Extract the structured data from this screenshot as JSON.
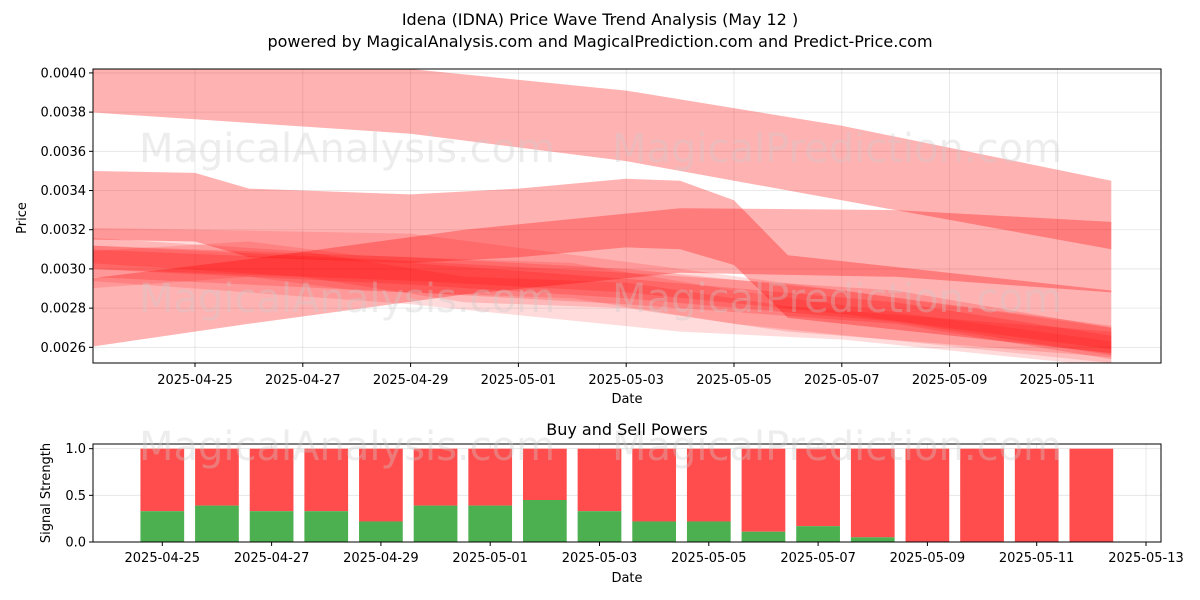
{
  "title": "Idena (IDNA) Price Wave Trend Analysis (May 12 )",
  "subtitle": "powered by MagicalAnalysis.com and MagicalPrediction.com and Predict-Price.com",
  "watermarks": [
    "MagicalAnalysis.com",
    "MagicalPrediction.com"
  ],
  "colors": {
    "band": "#ff0000",
    "buy": "#4caf50",
    "sell": "#ff4d4d"
  },
  "chart_data": [
    {
      "type": "area",
      "xlabel": "Date",
      "ylabel": "Price",
      "ylim": [
        0.00252,
        0.00402
      ],
      "x_ticks": [
        "2025-04-25",
        "2025-04-27",
        "2025-04-29",
        "2025-05-01",
        "2025-05-03",
        "2025-05-05",
        "2025-05-07",
        "2025-05-09",
        "2025-05-11"
      ],
      "y_ticks": [
        "0.0026",
        "0.0028",
        "0.0030",
        "0.0032",
        "0.0034",
        "0.0036",
        "0.0038",
        "0.0040"
      ],
      "grid": true,
      "series": [
        {
          "x": [
            "2025-04-23",
            "2025-04-29",
            "2025-05-03",
            "2025-05-07",
            "2025-05-12"
          ],
          "upper": [
            0.00408,
            0.00402,
            0.00391,
            0.00373,
            0.00345
          ],
          "lower": [
            0.0038,
            0.00369,
            0.00355,
            0.00335,
            0.0031
          ],
          "opacity": 0.3
        },
        {
          "x": [
            "2025-04-23",
            "2025-04-25",
            "2025-04-26",
            "2025-04-29",
            "2025-05-01",
            "2025-05-03",
            "2025-05-04",
            "2025-05-05",
            "2025-05-06",
            "2025-05-12"
          ],
          "upper": [
            0.0035,
            0.00349,
            0.00341,
            0.00338,
            0.00341,
            0.00346,
            0.00345,
            0.00335,
            0.00307,
            0.00289
          ],
          "lower": [
            0.00315,
            0.00314,
            0.00306,
            0.00303,
            0.00306,
            0.00311,
            0.0031,
            0.00302,
            0.00275,
            0.00257
          ],
          "opacity": 0.3
        },
        {
          "x": [
            "2025-04-23",
            "2025-04-26",
            "2025-04-30",
            "2025-05-04",
            "2025-05-08",
            "2025-05-12"
          ],
          "upper": [
            0.00295,
            0.00305,
            0.0032,
            0.00331,
            0.0033,
            0.00324
          ],
          "lower": [
            0.0026,
            0.00272,
            0.00287,
            0.00298,
            0.00296,
            0.00288
          ],
          "opacity": 0.3
        },
        {
          "x": [
            "2025-04-23",
            "2025-04-29",
            "2025-05-03",
            "2025-05-08",
            "2025-05-12"
          ],
          "upper": [
            0.00312,
            0.00304,
            0.00298,
            0.00289,
            0.0027
          ],
          "lower": [
            0.00296,
            0.00288,
            0.00282,
            0.00272,
            0.00254
          ],
          "opacity": 0.18
        },
        {
          "x": [
            "2025-04-23",
            "2025-04-29",
            "2025-05-03",
            "2025-05-08",
            "2025-05-12"
          ],
          "upper": [
            0.0031,
            0.00303,
            0.00295,
            0.00283,
            0.00266
          ],
          "lower": [
            0.003,
            0.00292,
            0.00285,
            0.00273,
            0.00256
          ],
          "opacity": 0.18
        },
        {
          "x": [
            "2025-04-23",
            "2025-04-27",
            "2025-04-30",
            "2025-05-03",
            "2025-05-06",
            "2025-05-12"
          ],
          "upper": [
            0.00316,
            0.00309,
            0.00296,
            0.00293,
            0.00281,
            0.00268
          ],
          "lower": [
            0.00303,
            0.00296,
            0.00283,
            0.0028,
            0.00268,
            0.00255
          ],
          "opacity": 0.16
        },
        {
          "x": [
            "2025-04-23",
            "2025-04-29",
            "2025-05-04",
            "2025-05-07",
            "2025-05-12"
          ],
          "upper": [
            0.00321,
            0.00318,
            0.003,
            0.00289,
            0.0027
          ],
          "lower": [
            0.00294,
            0.00282,
            0.00268,
            0.00264,
            0.0025
          ],
          "opacity": 0.14
        },
        {
          "x": [
            "2025-04-23",
            "2025-04-26",
            "2025-04-28",
            "2025-05-02",
            "2025-05-05",
            "2025-05-12"
          ],
          "upper": [
            0.00309,
            0.00314,
            0.00307,
            0.00303,
            0.00289,
            0.00263
          ],
          "lower": [
            0.0029,
            0.00296,
            0.00289,
            0.00285,
            0.00272,
            0.00252
          ],
          "opacity": 0.14
        },
        {
          "x": [
            "2025-04-23",
            "2025-04-29",
            "2025-05-03",
            "2025-05-07",
            "2025-05-12"
          ],
          "upper": [
            0.00312,
            0.00306,
            0.003,
            0.00289,
            0.00271
          ],
          "lower": [
            0.003,
            0.00294,
            0.00288,
            0.00277,
            0.00259
          ],
          "opacity": 0.18
        }
      ]
    },
    {
      "type": "bar",
      "title": "Buy and Sell Powers",
      "xlabel": "Date",
      "ylabel": "Signal Strength",
      "ylim": [
        0,
        1.05
      ],
      "x_ticks": [
        "2025-04-25",
        "2025-04-27",
        "2025-04-29",
        "2025-05-01",
        "2025-05-03",
        "2025-05-05",
        "2025-05-07",
        "2025-05-09",
        "2025-05-11",
        "2025-05-13"
      ],
      "y_ticks": [
        "0.0",
        "0.5",
        "1.0"
      ],
      "grid": true,
      "categories": [
        "2025-04-25",
        "2025-04-26",
        "2025-04-27",
        "2025-04-28",
        "2025-04-29",
        "2025-04-30",
        "2025-05-01",
        "2025-05-02",
        "2025-05-03",
        "2025-05-04",
        "2025-05-05",
        "2025-05-06",
        "2025-05-07",
        "2025-05-08",
        "2025-05-09",
        "2025-05-10",
        "2025-05-11",
        "2025-05-12"
      ],
      "series": [
        {
          "values": [
            0.33,
            0.39,
            0.33,
            0.33,
            0.22,
            0.39,
            0.39,
            0.45,
            0.33,
            0.22,
            0.22,
            0.11,
            0.17,
            0.05,
            0.0,
            0.0,
            0.0,
            0.0
          ]
        },
        {
          "values": [
            0.67,
            0.61,
            0.67,
            0.67,
            0.78,
            0.61,
            0.61,
            0.55,
            0.67,
            0.78,
            0.78,
            0.89,
            0.83,
            0.95,
            1.0,
            1.0,
            1.0,
            1.0
          ]
        }
      ]
    }
  ]
}
